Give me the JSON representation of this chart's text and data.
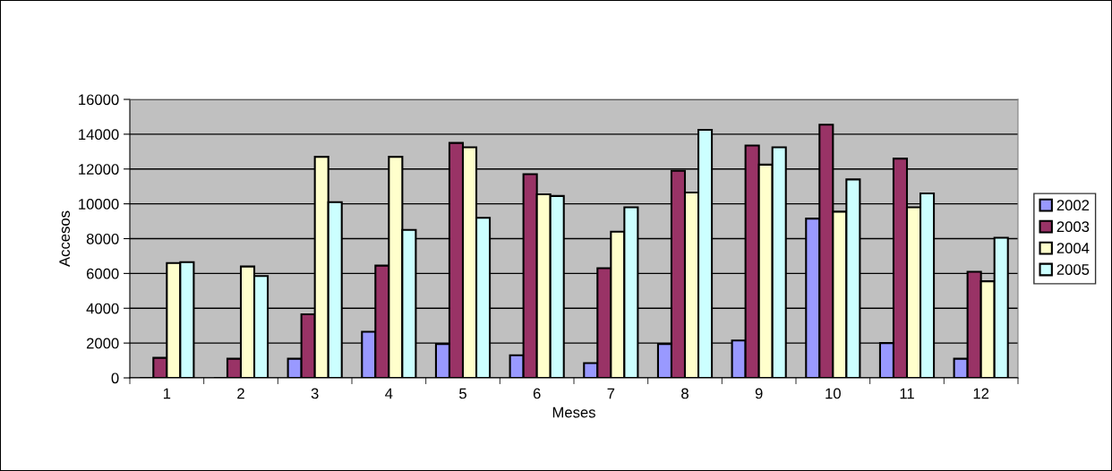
{
  "chart_data": {
    "type": "bar",
    "xlabel": "Meses",
    "ylabel": "Accesos",
    "categories": [
      "1",
      "2",
      "3",
      "4",
      "5",
      "6",
      "7",
      "8",
      "9",
      "10",
      "11",
      "12"
    ],
    "series": [
      {
        "name": "2002",
        "color": "#9999ff",
        "values": [
          null,
          null,
          1100,
          2650,
          1950,
          1300,
          850,
          1950,
          2150,
          9150,
          2000,
          1100
        ]
      },
      {
        "name": "2003",
        "color": "#993366",
        "values": [
          1150,
          1100,
          3650,
          6450,
          13500,
          11700,
          6300,
          11900,
          13350,
          14550,
          12600,
          6100
        ]
      },
      {
        "name": "2004",
        "color": "#ffffcc",
        "values": [
          6600,
          6400,
          12700,
          12700,
          13250,
          10550,
          8400,
          10650,
          12250,
          9550,
          9800,
          5550
        ]
      },
      {
        "name": "2005",
        "color": "#ccffff",
        "values": [
          6650,
          5850,
          10100,
          8500,
          9200,
          10450,
          9800,
          14250,
          13250,
          11400,
          10600,
          8050
        ]
      }
    ],
    "ylim": [
      0,
      16000
    ],
    "yticks": [
      0,
      2000,
      4000,
      6000,
      8000,
      10000,
      12000,
      14000,
      16000
    ],
    "grid": "y",
    "legend": "right"
  }
}
